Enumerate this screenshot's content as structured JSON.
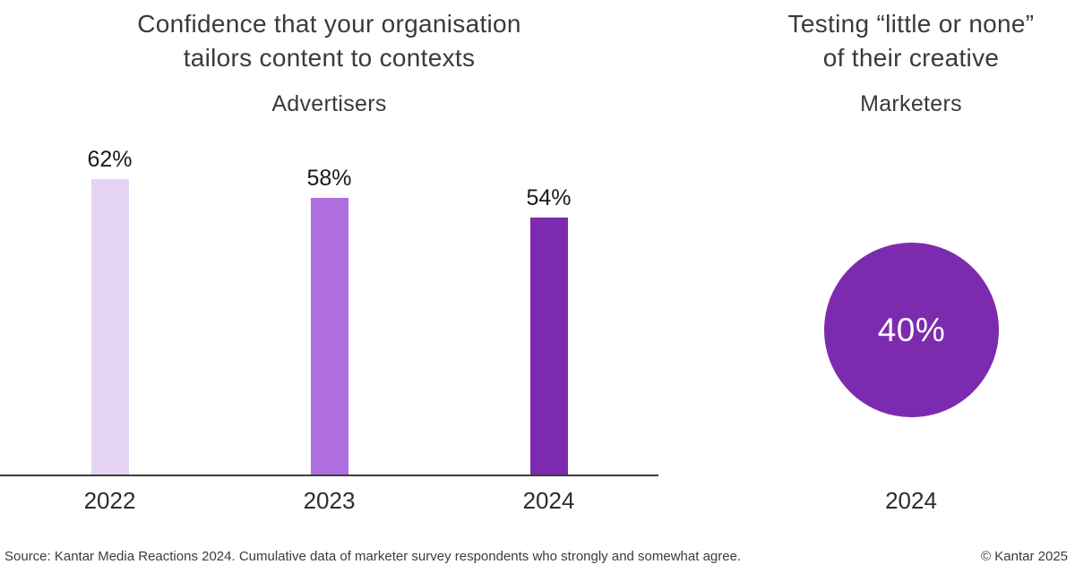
{
  "left_chart": {
    "title_line1": "Confidence that your organisation",
    "title_line2": "tailors content to contexts",
    "subtitle": "Advertisers"
  },
  "right_chart": {
    "title_line1": "Testing “little or none”",
    "title_line2": "of their creative",
    "subtitle": "Marketers",
    "value_label": "40%",
    "year_label": "2024",
    "circle_color": "#7d2bae",
    "value_text_color": "#ffffff"
  },
  "footer": {
    "source": "Source: Kantar Media Reactions 2024. Cumulative data of marketer survey respondents who strongly and somewhat agree.",
    "copyright": "© Kantar 2025"
  },
  "colors": {
    "axis": "#3c3c3c",
    "title_text": "#3a3a3a",
    "data_label_text": "#1a1a1a",
    "category_label_text": "#2d2d2d"
  },
  "chart_data": [
    {
      "type": "bar",
      "title": "Confidence that your organisation tailors content to contexts",
      "subtitle": "Advertisers",
      "categories": [
        "2022",
        "2023",
        "2024"
      ],
      "values": [
        62,
        58,
        54
      ],
      "value_labels": [
        "62%",
        "58%",
        "54%"
      ],
      "bar_colors": [
        "#e4d3f2",
        "#af6edd",
        "#7d2bae"
      ],
      "ylim": [
        0,
        100
      ],
      "grid": false,
      "legend": "none",
      "x_axis_line": true
    },
    {
      "type": "pie",
      "title": "Testing “little or none” of their creative",
      "subtitle": "Marketers",
      "categories": [
        "2024"
      ],
      "values": [
        40
      ],
      "center_label": "40%",
      "slice_color": "#7d2bae",
      "note": "single full circle rendered as KPI bubble with value inside"
    }
  ]
}
